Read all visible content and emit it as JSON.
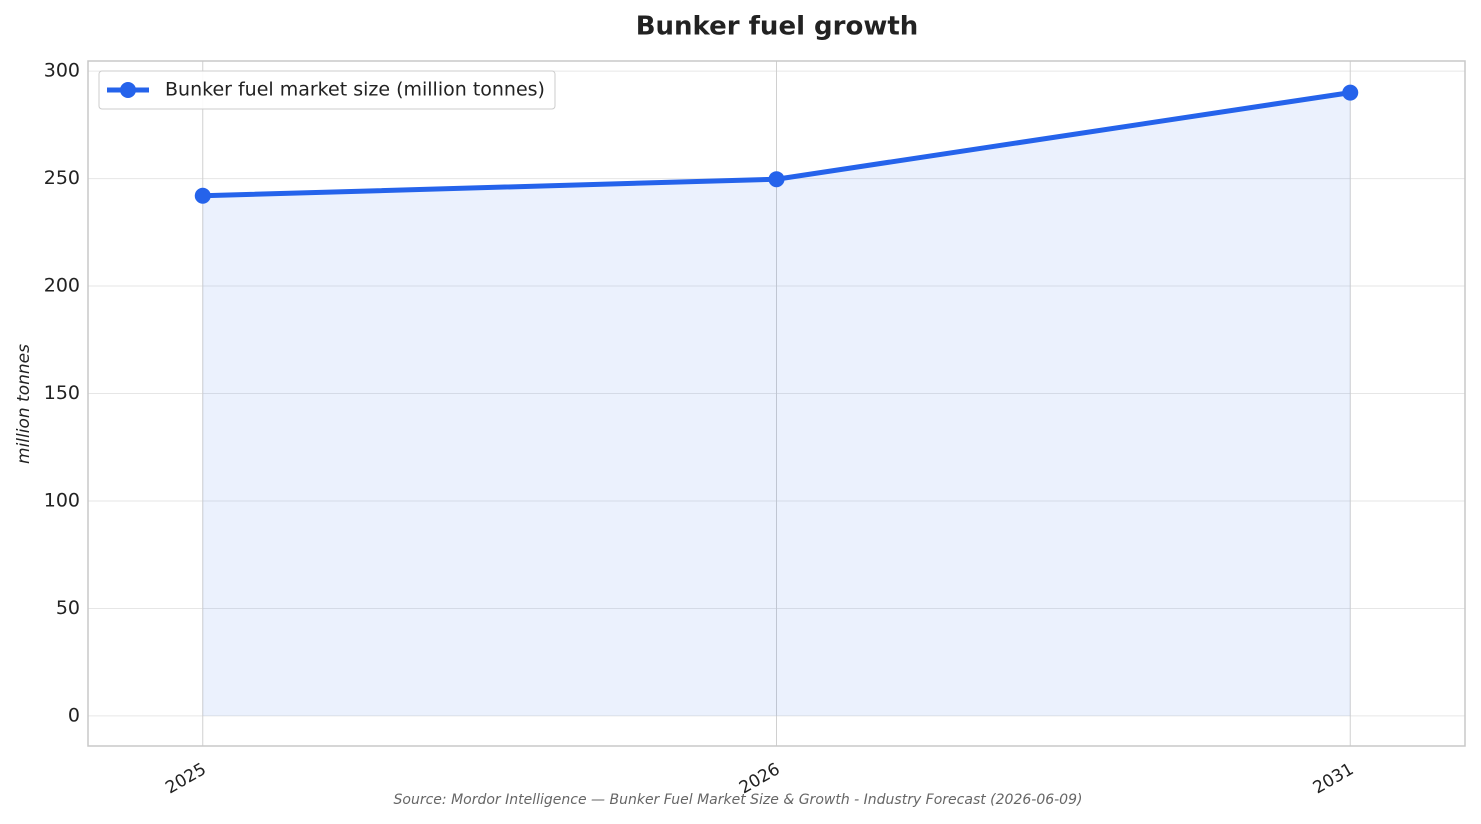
{
  "chart_data": {
    "type": "line",
    "title": "Bunker fuel growth",
    "y_label": "million tonnes",
    "source": "Source: Mordor Intelligence — Bunker Fuel Market Size & Growth - Industry Forecast (2026-06-09)",
    "categories": [
      "2025",
      "2026",
      "2031"
    ],
    "series": [
      {
        "name": "Bunker fuel market size (million tonnes)",
        "color": "#2563eb",
        "values": [
          242,
          249.7,
          290
        ]
      }
    ],
    "ylim": [
      -14,
      304.7
    ],
    "yticks": [
      0,
      50,
      100,
      150,
      200,
      250,
      300
    ],
    "grid": true,
    "area": true,
    "legend": "upper left"
  }
}
